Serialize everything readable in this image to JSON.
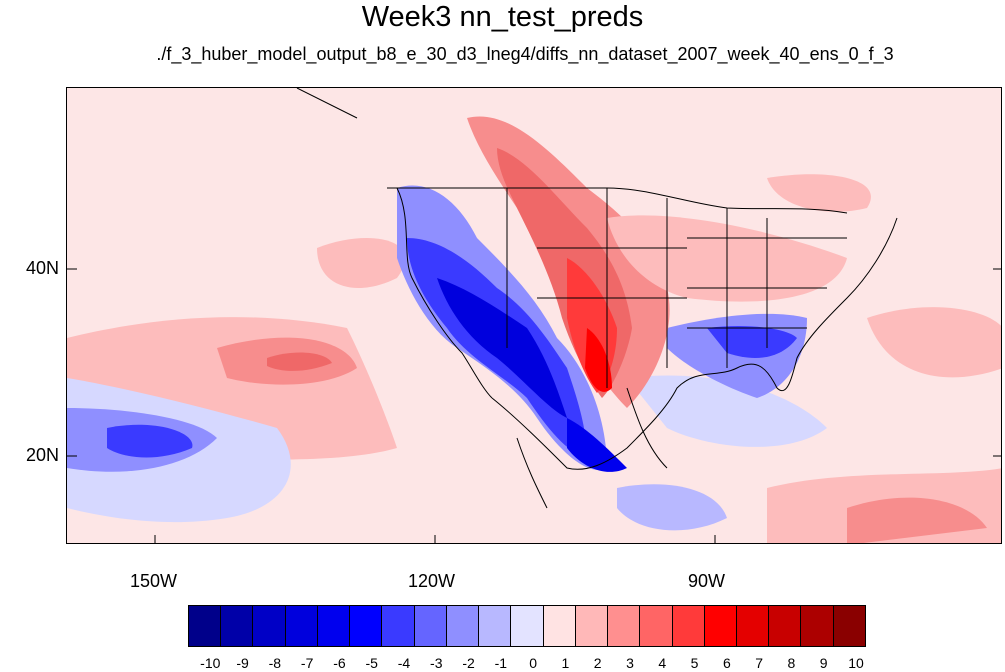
{
  "title": "Week3 nn_test_preds",
  "subtitle": "./f_3_huber_model_output_b8_e_30_d3_lneg4/diffs_nn_dataset_2007_week_40_ens_0_f_3",
  "map": {
    "lat_labels": [
      "40N",
      "20N"
    ],
    "lon_labels": [
      "150W",
      "120W",
      "90W"
    ]
  },
  "colorbar": {
    "labels": [
      "-10",
      "-9",
      "-8",
      "-7",
      "-6",
      "-5",
      "-4",
      "-3",
      "-2",
      "-1",
      "0",
      "1",
      "2",
      "3",
      "4",
      "5",
      "6",
      "7",
      "8",
      "9",
      "10"
    ],
    "colors": [
      "#00008a",
      "#0000a8",
      "#0000c6",
      "#0000dd",
      "#0000ee",
      "#0000ff",
      "#3a3aff",
      "#6565ff",
      "#8f8fff",
      "#b8b8ff",
      "#e3e3ff",
      "#ffe3e3",
      "#ffb8b8",
      "#ff8f8f",
      "#ff6565",
      "#ff3a3a",
      "#ff0000",
      "#e40000",
      "#c80000",
      "#ac0000",
      "#8a0000"
    ]
  },
  "colors": {
    "background_field": "#fde6e6",
    "coastline": "#000000"
  }
}
